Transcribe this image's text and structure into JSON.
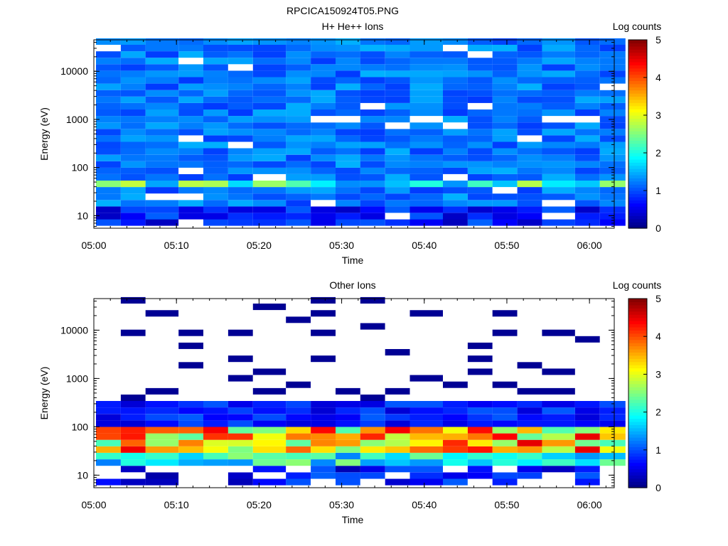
{
  "figure": {
    "title": "RPCICA150924T05.PNG"
  },
  "colors": {
    "background": "#ffffff",
    "axis": "#000000",
    "missing": "#ffffff"
  },
  "chart_data": [
    {
      "type": "heatmap",
      "title": "H+ He++ Ions",
      "xlabel": "Time",
      "ylabel": "Energy (eV)",
      "x_scale": "time",
      "y_scale": "log",
      "xlim": [
        "05:00",
        "06:03"
      ],
      "ylim": [
        5.5,
        45000
      ],
      "x_ticks": [
        "05:00",
        "05:10",
        "05:20",
        "05:30",
        "05:40",
        "05:50",
        "06:00"
      ],
      "y_ticks": [
        "10",
        "100",
        "1000",
        "10000"
      ],
      "time_bins": [
        "05:00",
        "05:03",
        "05:06",
        "05:10",
        "05:13",
        "05:16",
        "05:19",
        "05:23",
        "05:26",
        "05:29",
        "05:32",
        "05:35",
        "05:38",
        "05:42",
        "05:45",
        "05:48",
        "05:51",
        "05:54",
        "05:58",
        "06:01"
      ],
      "energy_bins_ev": [
        7.2,
        9.8,
        13.4,
        18.2,
        24.8,
        33.8,
        46,
        62.7,
        85.4,
        116,
        158,
        216,
        294,
        400,
        545,
        743,
        1010,
        1380,
        1880,
        2560,
        3490,
        4750,
        6470,
        8810,
        12000,
        16400,
        22300,
        30400,
        41400
      ],
      "colorbar": {
        "label": "Log counts",
        "min": 0,
        "max": 5,
        "ticks": [
          "0",
          "1",
          "2",
          "3",
          "4",
          "5"
        ],
        "colormap": "jet"
      },
      "grid": false
    },
    {
      "type": "heatmap",
      "title": "Other Ions",
      "xlabel": "Time",
      "ylabel": "Energy (eV)",
      "x_scale": "time",
      "y_scale": "log",
      "xlim": [
        "05:00",
        "06:03"
      ],
      "ylim": [
        5.5,
        45000
      ],
      "x_ticks": [
        "05:00",
        "05:10",
        "05:20",
        "05:30",
        "05:40",
        "05:50",
        "06:00"
      ],
      "y_ticks": [
        "10",
        "100",
        "1000",
        "10000"
      ],
      "time_bins": [
        "05:00",
        "05:03",
        "05:06",
        "05:10",
        "05:13",
        "05:16",
        "05:19",
        "05:23",
        "05:26",
        "05:29",
        "05:32",
        "05:35",
        "05:38",
        "05:42",
        "05:45",
        "05:48",
        "05:51",
        "05:54",
        "05:58",
        "06:01"
      ],
      "energy_bins_ev": [
        7.2,
        9.8,
        13.4,
        18.2,
        24.8,
        33.8,
        46,
        62.7,
        85.4,
        116,
        158,
        216,
        294,
        400,
        545,
        743,
        1010,
        1380,
        1880,
        2560,
        3490,
        4750,
        6470,
        8810,
        12000,
        16400,
        22300,
        30400,
        41400
      ],
      "colorbar": {
        "label": "Log counts",
        "min": 0,
        "max": 5,
        "ticks": [
          "0",
          "1",
          "2",
          "3",
          "4",
          "5"
        ],
        "colormap": "jet"
      },
      "grid": false
    }
  ]
}
